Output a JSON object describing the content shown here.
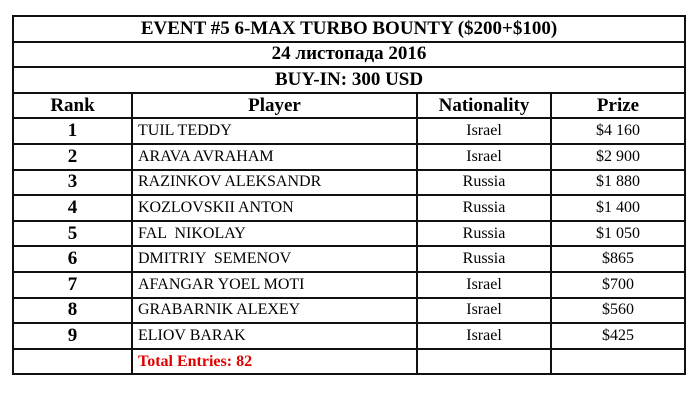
{
  "title": "EVENT #5 6-MAX TURBO BOUNTY ($200+$100)",
  "date": "24 листопада 2016",
  "buyin": "BUY-IN: 300 USD",
  "columns": [
    "Rank",
    "Player",
    "Nationality",
    "Prize"
  ],
  "rows": [
    {
      "rank": "1",
      "player": "TUIL TEDDY",
      "nationality": "Israel",
      "prize": "$4 160"
    },
    {
      "rank": "2",
      "player": "ARAVA AVRAHAM",
      "nationality": "Israel",
      "prize": "$2 900"
    },
    {
      "rank": "3",
      "player": "RAZINKOV ALEKSANDR",
      "nationality": "Russia",
      "prize": "$1 880"
    },
    {
      "rank": "4",
      "player": "KOZLOVSKII ANTON",
      "nationality": "Russia",
      "prize": "$1 400"
    },
    {
      "rank": "5",
      "player": "FAL  NIKOLAY",
      "nationality": "Russia",
      "prize": "$1 050"
    },
    {
      "rank": "6",
      "player": "DMITRIY  SEMENOV",
      "nationality": "Russia",
      "prize": "$865"
    },
    {
      "rank": "7",
      "player": "AFANGAR YOEL MOTI",
      "nationality": "Israel",
      "prize": "$700"
    },
    {
      "rank": "8",
      "player": "GRABARNIK ALEXEY",
      "nationality": "Israel",
      "prize": "$560"
    },
    {
      "rank": "9",
      "player": "ELIOV BARAK",
      "nationality": "Israel",
      "prize": "$425"
    }
  ],
  "total_entries": "Total Entries: 82",
  "colors": {
    "total_text": "#e00000",
    "border": "#111111"
  }
}
